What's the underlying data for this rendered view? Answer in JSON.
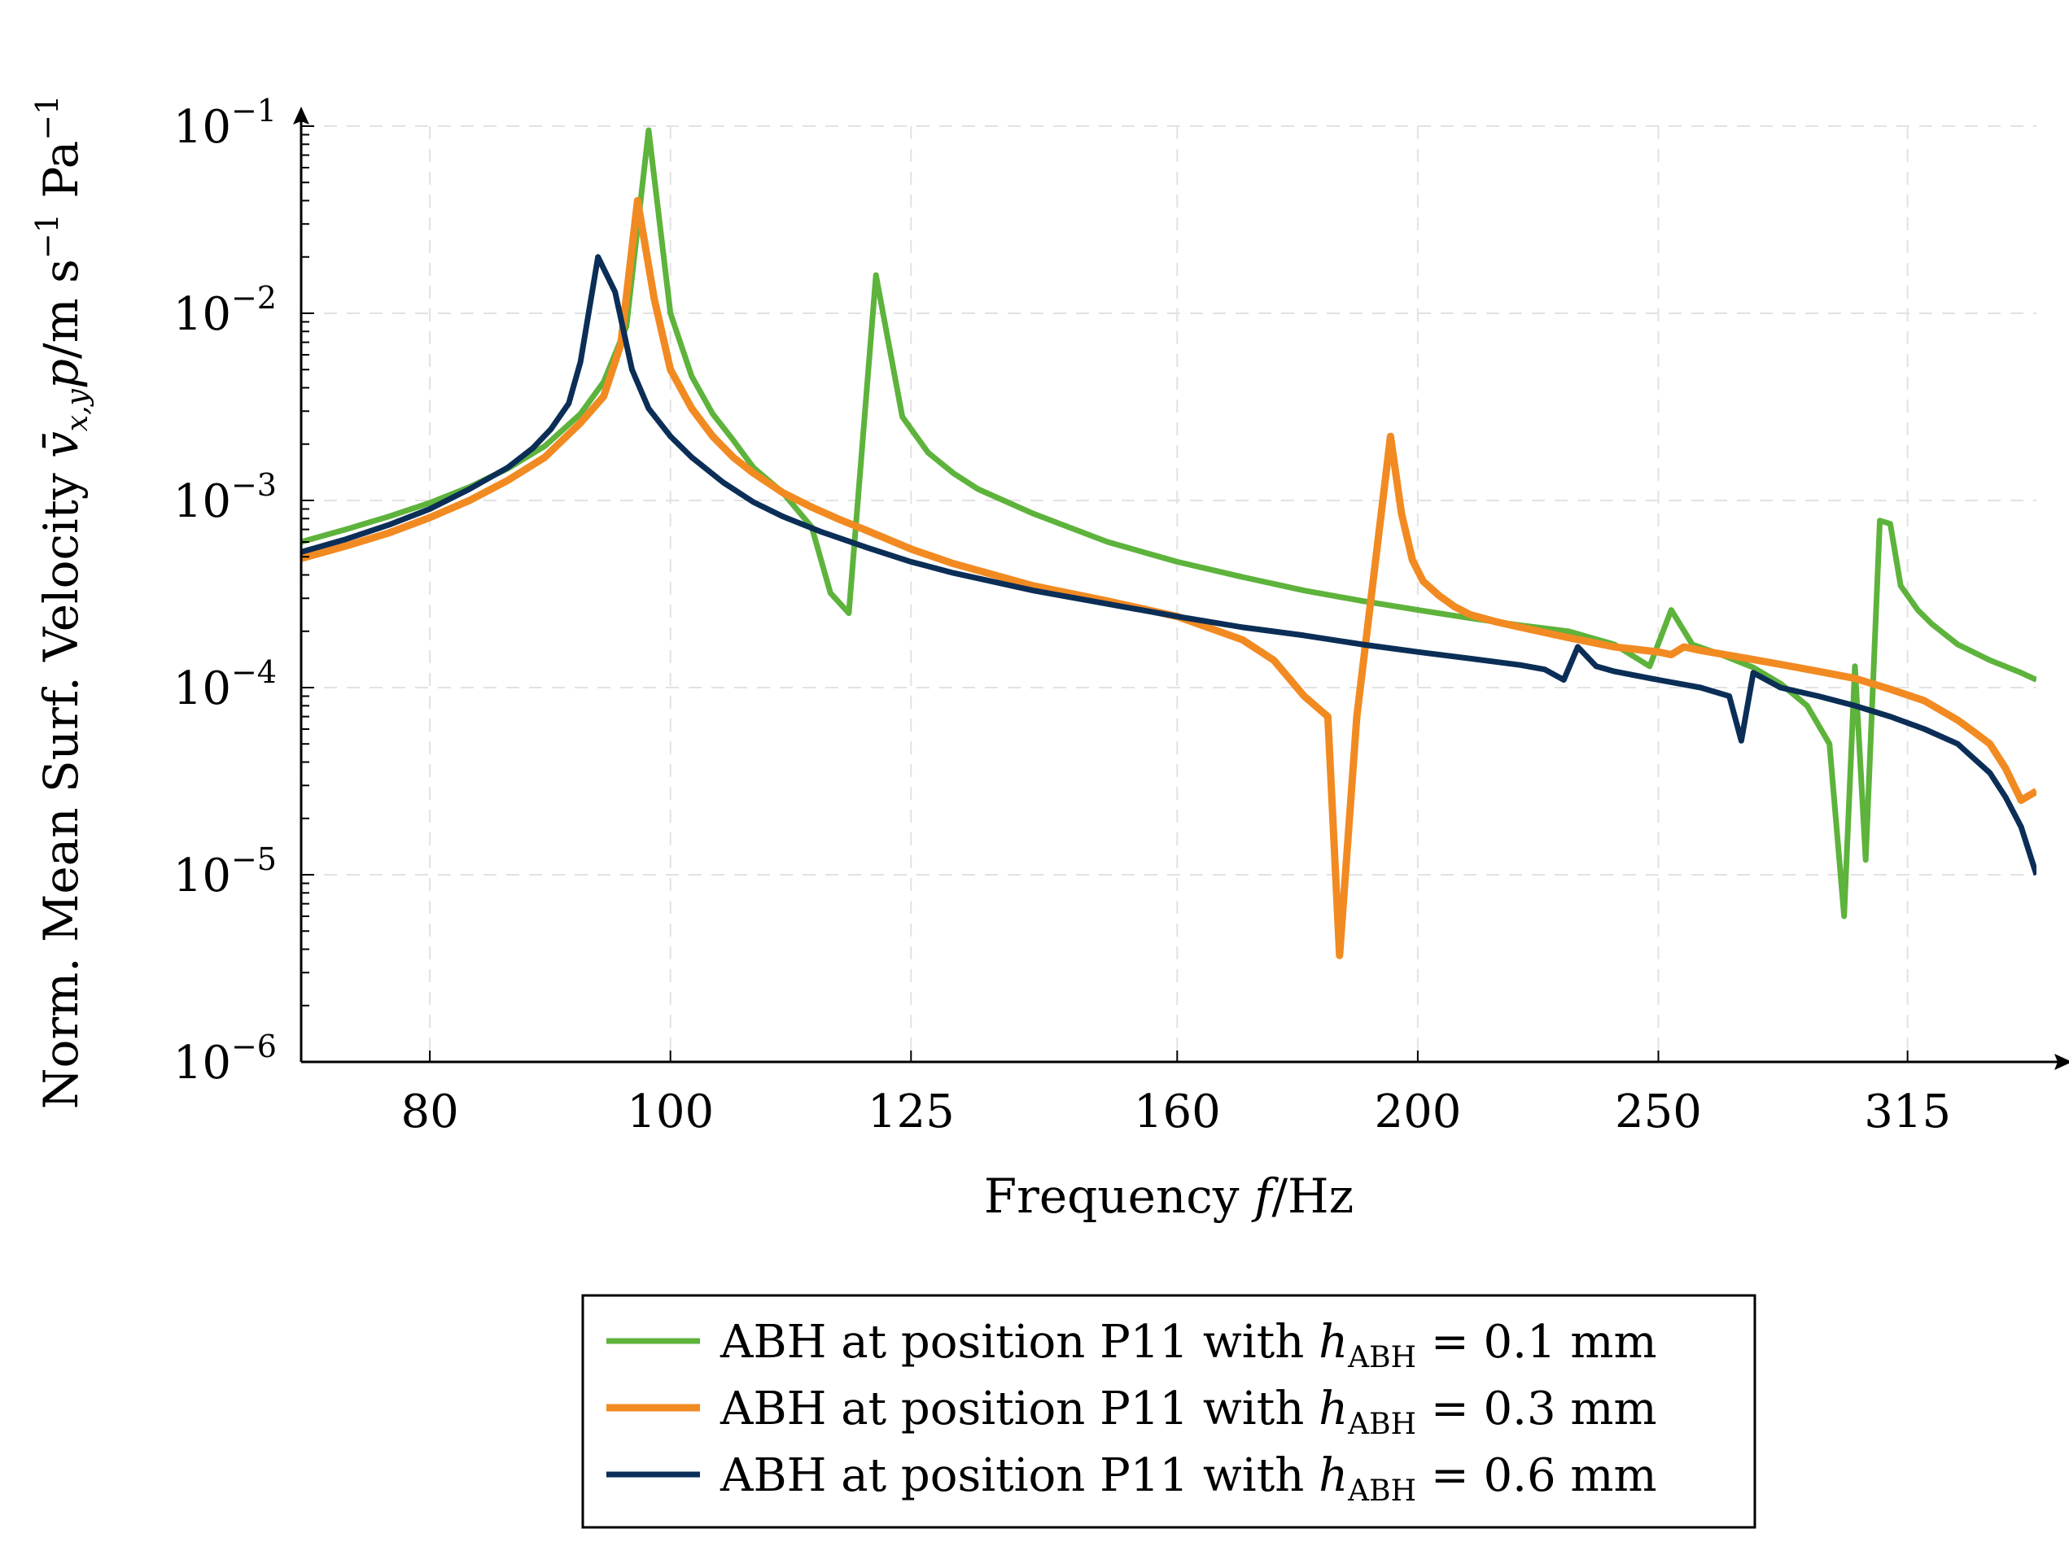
{
  "chart_data": {
    "type": "line",
    "title": "",
    "xlabel": "Frequency f/Hz",
    "ylabel": "Norm. Mean Surf. Velocity v̄x,y/p /m s⁻¹ Pa⁻¹",
    "xlabel_parts": {
      "main": "Frequency ",
      "var": "f",
      "unit": "/Hz"
    },
    "ylabel_parts": {
      "main": "Norm. Mean Surf. Velocity ",
      "frac_num": "v̄",
      "frac_num_sub": "x,y",
      "frac_den": "p",
      "unit_a": "/m s",
      "unit_a_exp": "−1",
      "unit_b": " Pa",
      "unit_b_exp": "−1"
    },
    "x_scale": "log",
    "y_scale": "log",
    "xlim": [
      71,
      355
    ],
    "ylim": [
      1e-06,
      0.1
    ],
    "grid": true,
    "legend_position": "bottom-center",
    "xticks": [
      80,
      100,
      125,
      160,
      200,
      250,
      315
    ],
    "xtick_labels": [
      "80",
      "100",
      "125",
      "160",
      "200",
      "250",
      "315"
    ],
    "yticks": [
      {
        "value": 1e-06,
        "base": "10",
        "exp": "−6"
      },
      {
        "value": 1e-05,
        "base": "10",
        "exp": "−5"
      },
      {
        "value": 0.0001,
        "base": "10",
        "exp": "−4"
      },
      {
        "value": 0.001,
        "base": "10",
        "exp": "−3"
      },
      {
        "value": 0.01,
        "base": "10",
        "exp": "−2"
      },
      {
        "value": 0.1,
        "base": "10",
        "exp": "−1"
      }
    ],
    "series": [
      {
        "name": "ABH at position P11 with hABH = 0.1 mm",
        "label_prefix": "ABH at position P11 with ",
        "label_var": "h",
        "label_sub": "ABH",
        "label_value": " = 0.1 mm",
        "color": "#5DB33B",
        "x": [
          71,
          74,
          77,
          80,
          83,
          86,
          89,
          92,
          94,
          96,
          98,
          100,
          102,
          104,
          106,
          108,
          111,
          114,
          116,
          118,
          121,
          124,
          127,
          130,
          133,
          140,
          150,
          160,
          170,
          180,
          190,
          200,
          210,
          220,
          230,
          240,
          248,
          253,
          258,
          265,
          273,
          280,
          287,
          293,
          297,
          300,
          303,
          307,
          310,
          313,
          318,
          322,
          330,
          340,
          350,
          355
        ],
        "y": [
          0.0006,
          0.0007,
          0.00082,
          0.00097,
          0.00118,
          0.00148,
          0.00195,
          0.0029,
          0.0043,
          0.0085,
          0.095,
          0.01,
          0.0046,
          0.0029,
          0.0021,
          0.0015,
          0.0011,
          0.00072,
          0.00032,
          0.00025,
          0.016,
          0.0028,
          0.0018,
          0.0014,
          0.00115,
          0.00085,
          0.0006,
          0.00047,
          0.00039,
          0.00033,
          0.00029,
          0.00026,
          0.000235,
          0.000215,
          0.0002,
          0.00017,
          0.00013,
          0.00026,
          0.00017,
          0.00015,
          0.000128,
          0.000105,
          8e-05,
          5e-05,
          6e-06,
          0.00013,
          1.2e-05,
          0.00078,
          0.00075,
          0.00035,
          0.00026,
          0.00022,
          0.00017,
          0.00014,
          0.00012,
          0.00011
        ]
      },
      {
        "name": "ABH at position P11 with hABH = 0.3 mm",
        "label_prefix": "ABH at position P11 with ",
        "label_var": "h",
        "label_sub": "ABH",
        "label_value": " = 0.3 mm",
        "color": "#F28A22",
        "x": [
          71,
          74,
          77,
          80,
          83,
          86,
          89,
          92,
          94,
          95.5,
          97,
          98.5,
          100,
          102,
          104,
          106,
          108,
          111,
          114,
          117,
          120,
          125,
          130,
          140,
          150,
          160,
          170,
          175,
          180,
          184,
          186,
          189,
          195,
          197,
          199,
          201,
          204,
          207,
          210,
          215,
          220,
          230,
          240,
          250,
          253,
          256,
          260,
          270,
          280,
          290,
          300,
          310,
          320,
          330,
          335,
          340,
          345,
          350,
          355
        ],
        "y": [
          0.00049,
          0.00057,
          0.00067,
          0.00081,
          0.001,
          0.00128,
          0.0017,
          0.0026,
          0.0036,
          0.0068,
          0.04,
          0.012,
          0.005,
          0.0031,
          0.0022,
          0.0017,
          0.0014,
          0.0011,
          0.00092,
          0.00079,
          0.00069,
          0.00055,
          0.00046,
          0.00035,
          0.00029,
          0.00024,
          0.00018,
          0.00014,
          9e-05,
          7e-05,
          3.7e-06,
          7e-05,
          0.0022,
          0.00085,
          0.00048,
          0.00037,
          0.00031,
          0.00027,
          0.000245,
          0.000225,
          0.00021,
          0.000185,
          0.000165,
          0.000155,
          0.00015,
          0.000165,
          0.000158,
          0.000145,
          0.000133,
          0.000122,
          0.000112,
          9.8e-05,
          8.5e-05,
          6.7e-05,
          5.8e-05,
          5e-05,
          3.7e-05,
          2.5e-05,
          2.8e-05
        ]
      },
      {
        "name": "ABH at position P11 with hABH = 0.6 mm",
        "label_prefix": "ABH at position P11 with ",
        "label_var": "h",
        "label_sub": "ABH",
        "label_value": " = 0.6 mm",
        "color": "#0B2E57",
        "x": [
          71,
          74,
          77,
          80,
          83,
          86,
          88,
          89.5,
          91,
          92,
          93.5,
          95,
          96.5,
          98,
          100,
          102,
          105,
          108,
          111,
          115,
          120,
          125,
          130,
          140,
          150,
          160,
          170,
          180,
          190,
          200,
          210,
          220,
          225,
          229,
          232,
          236,
          240,
          250,
          260,
          267,
          270,
          273,
          280,
          290,
          300,
          310,
          320,
          330,
          340,
          345,
          350,
          355
        ],
        "y": [
          0.00053,
          0.00062,
          0.00074,
          0.0009,
          0.00115,
          0.0015,
          0.0019,
          0.0024,
          0.0033,
          0.0055,
          0.02,
          0.013,
          0.005,
          0.0031,
          0.0022,
          0.0017,
          0.00125,
          0.00098,
          0.00082,
          0.00068,
          0.00056,
          0.00047,
          0.00041,
          0.00033,
          0.00028,
          0.00024,
          0.00021,
          0.00019,
          0.00017,
          0.000155,
          0.000143,
          0.000132,
          0.000125,
          0.00011,
          0.000165,
          0.00013,
          0.000122,
          0.00011,
          0.0001,
          9e-05,
          5.2e-05,
          0.00012,
          0.0001,
          9e-05,
          8e-05,
          7e-05,
          6e-05,
          5e-05,
          3.5e-05,
          2.6e-05,
          1.8e-05,
          1e-05
        ]
      }
    ]
  }
}
